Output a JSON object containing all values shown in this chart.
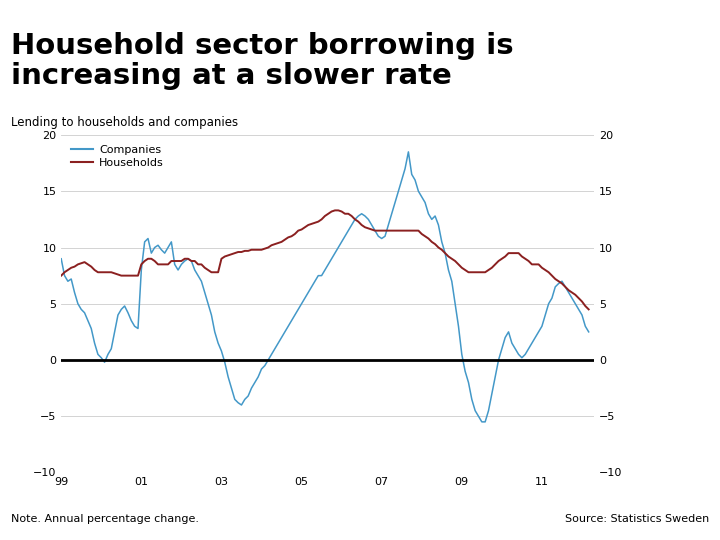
{
  "title": "Household sector borrowing is\nincreasing at a slower rate",
  "subtitle": "Lending to households and companies",
  "note": "Note. Annual percentage change.",
  "source": "Source: Statistics Sweden",
  "ylim": [
    -10,
    20
  ],
  "yticks": [
    -10,
    -5,
    0,
    5,
    10,
    15,
    20
  ],
  "xlabel_years": [
    "99",
    "01",
    "03",
    "05",
    "07",
    "09",
    "11"
  ],
  "companies_color": "#4398c8",
  "households_color": "#8b2020",
  "background_color": "#ffffff",
  "title_color": "#000000",
  "subtitle_color": "#000000",
  "grid_color": "#cccccc",
  "zero_line_color": "#000000",
  "footer_bar_color": "#1e4b8c",
  "logo_bg": "#1e4b8c",
  "footer_text_color": "#000000",
  "companies_x": [
    1999.0,
    1999.083,
    1999.167,
    1999.25,
    1999.333,
    1999.417,
    1999.5,
    1999.583,
    1999.667,
    1999.75,
    1999.833,
    1999.917,
    2000.0,
    2000.083,
    2000.167,
    2000.25,
    2000.333,
    2000.417,
    2000.5,
    2000.583,
    2000.667,
    2000.75,
    2000.833,
    2000.917,
    2001.0,
    2001.083,
    2001.167,
    2001.25,
    2001.333,
    2001.417,
    2001.5,
    2001.583,
    2001.667,
    2001.75,
    2001.833,
    2001.917,
    2002.0,
    2002.083,
    2002.167,
    2002.25,
    2002.333,
    2002.417,
    2002.5,
    2002.583,
    2002.667,
    2002.75,
    2002.833,
    2002.917,
    2003.0,
    2003.083,
    2003.167,
    2003.25,
    2003.333,
    2003.417,
    2003.5,
    2003.583,
    2003.667,
    2003.75,
    2003.833,
    2003.917,
    2004.0,
    2004.083,
    2004.167,
    2004.25,
    2004.333,
    2004.417,
    2004.5,
    2004.583,
    2004.667,
    2004.75,
    2004.833,
    2004.917,
    2005.0,
    2005.083,
    2005.167,
    2005.25,
    2005.333,
    2005.417,
    2005.5,
    2005.583,
    2005.667,
    2005.75,
    2005.833,
    2005.917,
    2006.0,
    2006.083,
    2006.167,
    2006.25,
    2006.333,
    2006.417,
    2006.5,
    2006.583,
    2006.667,
    2006.75,
    2006.833,
    2006.917,
    2007.0,
    2007.083,
    2007.167,
    2007.25,
    2007.333,
    2007.417,
    2007.5,
    2007.583,
    2007.667,
    2007.75,
    2007.833,
    2007.917,
    2008.0,
    2008.083,
    2008.167,
    2008.25,
    2008.333,
    2008.417,
    2008.5,
    2008.583,
    2008.667,
    2008.75,
    2008.833,
    2008.917,
    2009.0,
    2009.083,
    2009.167,
    2009.25,
    2009.333,
    2009.417,
    2009.5,
    2009.583,
    2009.667,
    2009.75,
    2009.833,
    2009.917,
    2010.0,
    2010.083,
    2010.167,
    2010.25,
    2010.333,
    2010.417,
    2010.5,
    2010.583,
    2010.667,
    2010.75,
    2010.833,
    2010.917,
    2011.0,
    2011.083,
    2011.167,
    2011.25,
    2011.333,
    2011.417,
    2011.5,
    2011.583,
    2011.667,
    2011.75,
    2011.833,
    2011.917,
    2012.0,
    2012.083,
    2012.167
  ],
  "companies_y": [
    9.0,
    7.5,
    7.0,
    7.2,
    6.0,
    5.0,
    4.5,
    4.2,
    3.5,
    2.8,
    1.5,
    0.5,
    0.2,
    -0.2,
    0.5,
    1.0,
    2.5,
    4.0,
    4.5,
    4.8,
    4.2,
    3.5,
    3.0,
    2.8,
    8.0,
    10.5,
    10.8,
    9.5,
    10.0,
    10.2,
    9.8,
    9.5,
    10.0,
    10.5,
    8.5,
    8.0,
    8.5,
    8.8,
    9.0,
    8.8,
    8.0,
    7.5,
    7.0,
    6.0,
    5.0,
    4.0,
    2.5,
    1.5,
    0.8,
    -0.2,
    -1.5,
    -2.5,
    -3.5,
    -3.8,
    -4.0,
    -3.5,
    -3.2,
    -2.5,
    -2.0,
    -1.5,
    -0.8,
    -0.5,
    0.0,
    0.5,
    1.0,
    1.5,
    2.0,
    2.5,
    3.0,
    3.5,
    4.0,
    4.5,
    5.0,
    5.5,
    6.0,
    6.5,
    7.0,
    7.5,
    7.5,
    8.0,
    8.5,
    9.0,
    9.5,
    10.0,
    10.5,
    11.0,
    11.5,
    12.0,
    12.5,
    12.8,
    13.0,
    12.8,
    12.5,
    12.0,
    11.5,
    11.0,
    10.8,
    11.0,
    12.0,
    13.0,
    14.0,
    15.0,
    16.0,
    17.0,
    18.5,
    16.5,
    16.0,
    15.0,
    14.5,
    14.0,
    13.0,
    12.5,
    12.8,
    12.0,
    10.5,
    9.5,
    8.0,
    7.0,
    5.0,
    3.0,
    0.5,
    -1.0,
    -2.0,
    -3.5,
    -4.5,
    -5.0,
    -5.5,
    -5.5,
    -4.5,
    -3.0,
    -1.5,
    0.0,
    1.0,
    2.0,
    2.5,
    1.5,
    1.0,
    0.5,
    0.2,
    0.5,
    1.0,
    1.5,
    2.0,
    2.5,
    3.0,
    4.0,
    5.0,
    5.5,
    6.5,
    6.8,
    7.0,
    6.5,
    6.0,
    5.5,
    5.0,
    4.5,
    4.0,
    3.0,
    2.5
  ],
  "households_x": [
    1999.0,
    1999.083,
    1999.167,
    1999.25,
    1999.333,
    1999.417,
    1999.5,
    1999.583,
    1999.667,
    1999.75,
    1999.833,
    1999.917,
    2000.0,
    2000.083,
    2000.167,
    2000.25,
    2000.333,
    2000.417,
    2000.5,
    2000.583,
    2000.667,
    2000.75,
    2000.833,
    2000.917,
    2001.0,
    2001.083,
    2001.167,
    2001.25,
    2001.333,
    2001.417,
    2001.5,
    2001.583,
    2001.667,
    2001.75,
    2001.833,
    2001.917,
    2002.0,
    2002.083,
    2002.167,
    2002.25,
    2002.333,
    2002.417,
    2002.5,
    2002.583,
    2002.667,
    2002.75,
    2002.833,
    2002.917,
    2003.0,
    2003.083,
    2003.167,
    2003.25,
    2003.333,
    2003.417,
    2003.5,
    2003.583,
    2003.667,
    2003.75,
    2003.833,
    2003.917,
    2004.0,
    2004.083,
    2004.167,
    2004.25,
    2004.333,
    2004.417,
    2004.5,
    2004.583,
    2004.667,
    2004.75,
    2004.833,
    2004.917,
    2005.0,
    2005.083,
    2005.167,
    2005.25,
    2005.333,
    2005.417,
    2005.5,
    2005.583,
    2005.667,
    2005.75,
    2005.833,
    2005.917,
    2006.0,
    2006.083,
    2006.167,
    2006.25,
    2006.333,
    2006.417,
    2006.5,
    2006.583,
    2006.667,
    2006.75,
    2006.833,
    2006.917,
    2007.0,
    2007.083,
    2007.167,
    2007.25,
    2007.333,
    2007.417,
    2007.5,
    2007.583,
    2007.667,
    2007.75,
    2007.833,
    2007.917,
    2008.0,
    2008.083,
    2008.167,
    2008.25,
    2008.333,
    2008.417,
    2008.5,
    2008.583,
    2008.667,
    2008.75,
    2008.833,
    2008.917,
    2009.0,
    2009.083,
    2009.167,
    2009.25,
    2009.333,
    2009.417,
    2009.5,
    2009.583,
    2009.667,
    2009.75,
    2009.833,
    2009.917,
    2010.0,
    2010.083,
    2010.167,
    2010.25,
    2010.333,
    2010.417,
    2010.5,
    2010.583,
    2010.667,
    2010.75,
    2010.833,
    2010.917,
    2011.0,
    2011.083,
    2011.167,
    2011.25,
    2011.333,
    2011.417,
    2011.5,
    2011.583,
    2011.667,
    2011.75,
    2011.833,
    2011.917,
    2012.0,
    2012.083,
    2012.167
  ],
  "households_y": [
    7.5,
    7.8,
    8.0,
    8.2,
    8.3,
    8.5,
    8.6,
    8.7,
    8.5,
    8.3,
    8.0,
    7.8,
    7.8,
    7.8,
    7.8,
    7.8,
    7.7,
    7.6,
    7.5,
    7.5,
    7.5,
    7.5,
    7.5,
    7.5,
    8.5,
    8.8,
    9.0,
    9.0,
    8.8,
    8.5,
    8.5,
    8.5,
    8.5,
    8.8,
    8.8,
    8.8,
    8.8,
    9.0,
    9.0,
    8.8,
    8.8,
    8.5,
    8.5,
    8.2,
    8.0,
    7.8,
    7.8,
    7.8,
    9.0,
    9.2,
    9.3,
    9.4,
    9.5,
    9.6,
    9.6,
    9.7,
    9.7,
    9.8,
    9.8,
    9.8,
    9.8,
    9.9,
    10.0,
    10.2,
    10.3,
    10.4,
    10.5,
    10.7,
    10.9,
    11.0,
    11.2,
    11.5,
    11.6,
    11.8,
    12.0,
    12.1,
    12.2,
    12.3,
    12.5,
    12.8,
    13.0,
    13.2,
    13.3,
    13.3,
    13.2,
    13.0,
    13.0,
    12.8,
    12.5,
    12.3,
    12.0,
    11.8,
    11.7,
    11.6,
    11.5,
    11.5,
    11.5,
    11.5,
    11.5,
    11.5,
    11.5,
    11.5,
    11.5,
    11.5,
    11.5,
    11.5,
    11.5,
    11.5,
    11.2,
    11.0,
    10.8,
    10.5,
    10.3,
    10.0,
    9.8,
    9.5,
    9.2,
    9.0,
    8.8,
    8.5,
    8.2,
    8.0,
    7.8,
    7.8,
    7.8,
    7.8,
    7.8,
    7.8,
    8.0,
    8.2,
    8.5,
    8.8,
    9.0,
    9.2,
    9.5,
    9.5,
    9.5,
    9.5,
    9.2,
    9.0,
    8.8,
    8.5,
    8.5,
    8.5,
    8.2,
    8.0,
    7.8,
    7.5,
    7.2,
    7.0,
    6.8,
    6.5,
    6.2,
    6.0,
    5.8,
    5.5,
    5.2,
    4.8,
    4.5
  ]
}
